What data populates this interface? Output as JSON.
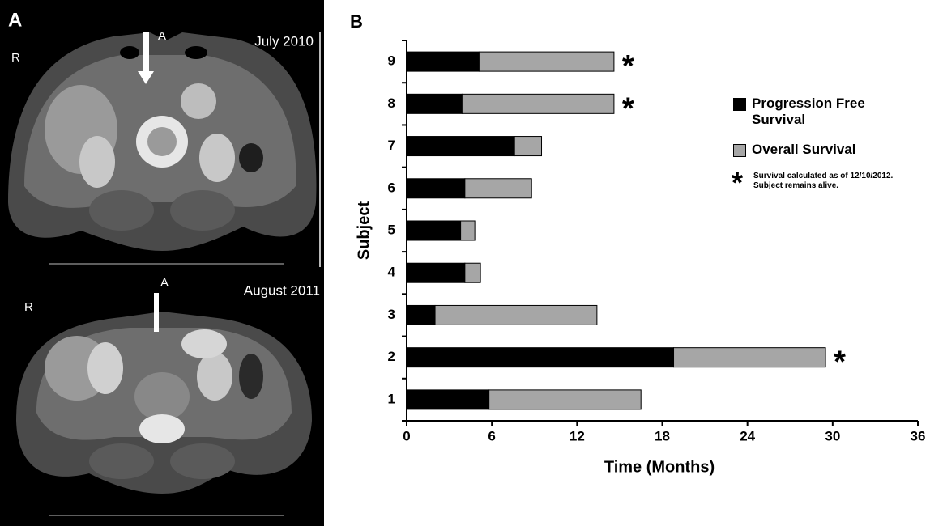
{
  "panel_a": {
    "label": "A",
    "images": [
      {
        "date": "July 2010",
        "anterior": "A",
        "right": "R"
      },
      {
        "date": "August 2011",
        "anterior": "A",
        "right": "R"
      }
    ]
  },
  "chart_data": {
    "type": "stacked_barh",
    "panel_label": "B",
    "categories": [
      "1",
      "2",
      "3",
      "4",
      "5",
      "6",
      "7",
      "8",
      "9"
    ],
    "series": [
      {
        "name": "Progression Free Survival",
        "color": "#000000",
        "values": [
          5.8,
          18.8,
          2.0,
          4.1,
          3.8,
          4.1,
          7.6,
          3.9,
          5.1
        ]
      },
      {
        "name": "Overall Survival",
        "color": "#a6a6a6",
        "values": [
          10.7,
          10.7,
          11.4,
          1.1,
          1.0,
          4.7,
          1.9,
          10.7,
          9.5
        ]
      }
    ],
    "value_markers": [
      null,
      "*",
      null,
      null,
      null,
      null,
      null,
      "*",
      "*"
    ],
    "legend_note": {
      "symbol": "*",
      "text": "Survival calculated as of 12/10/2012. Subject remains alive."
    },
    "xlabel": "Time (Months)",
    "ylabel": "Subject",
    "xlim": [
      0,
      36
    ],
    "xticks": [
      0,
      6,
      12,
      18,
      24,
      30,
      36
    ]
  }
}
